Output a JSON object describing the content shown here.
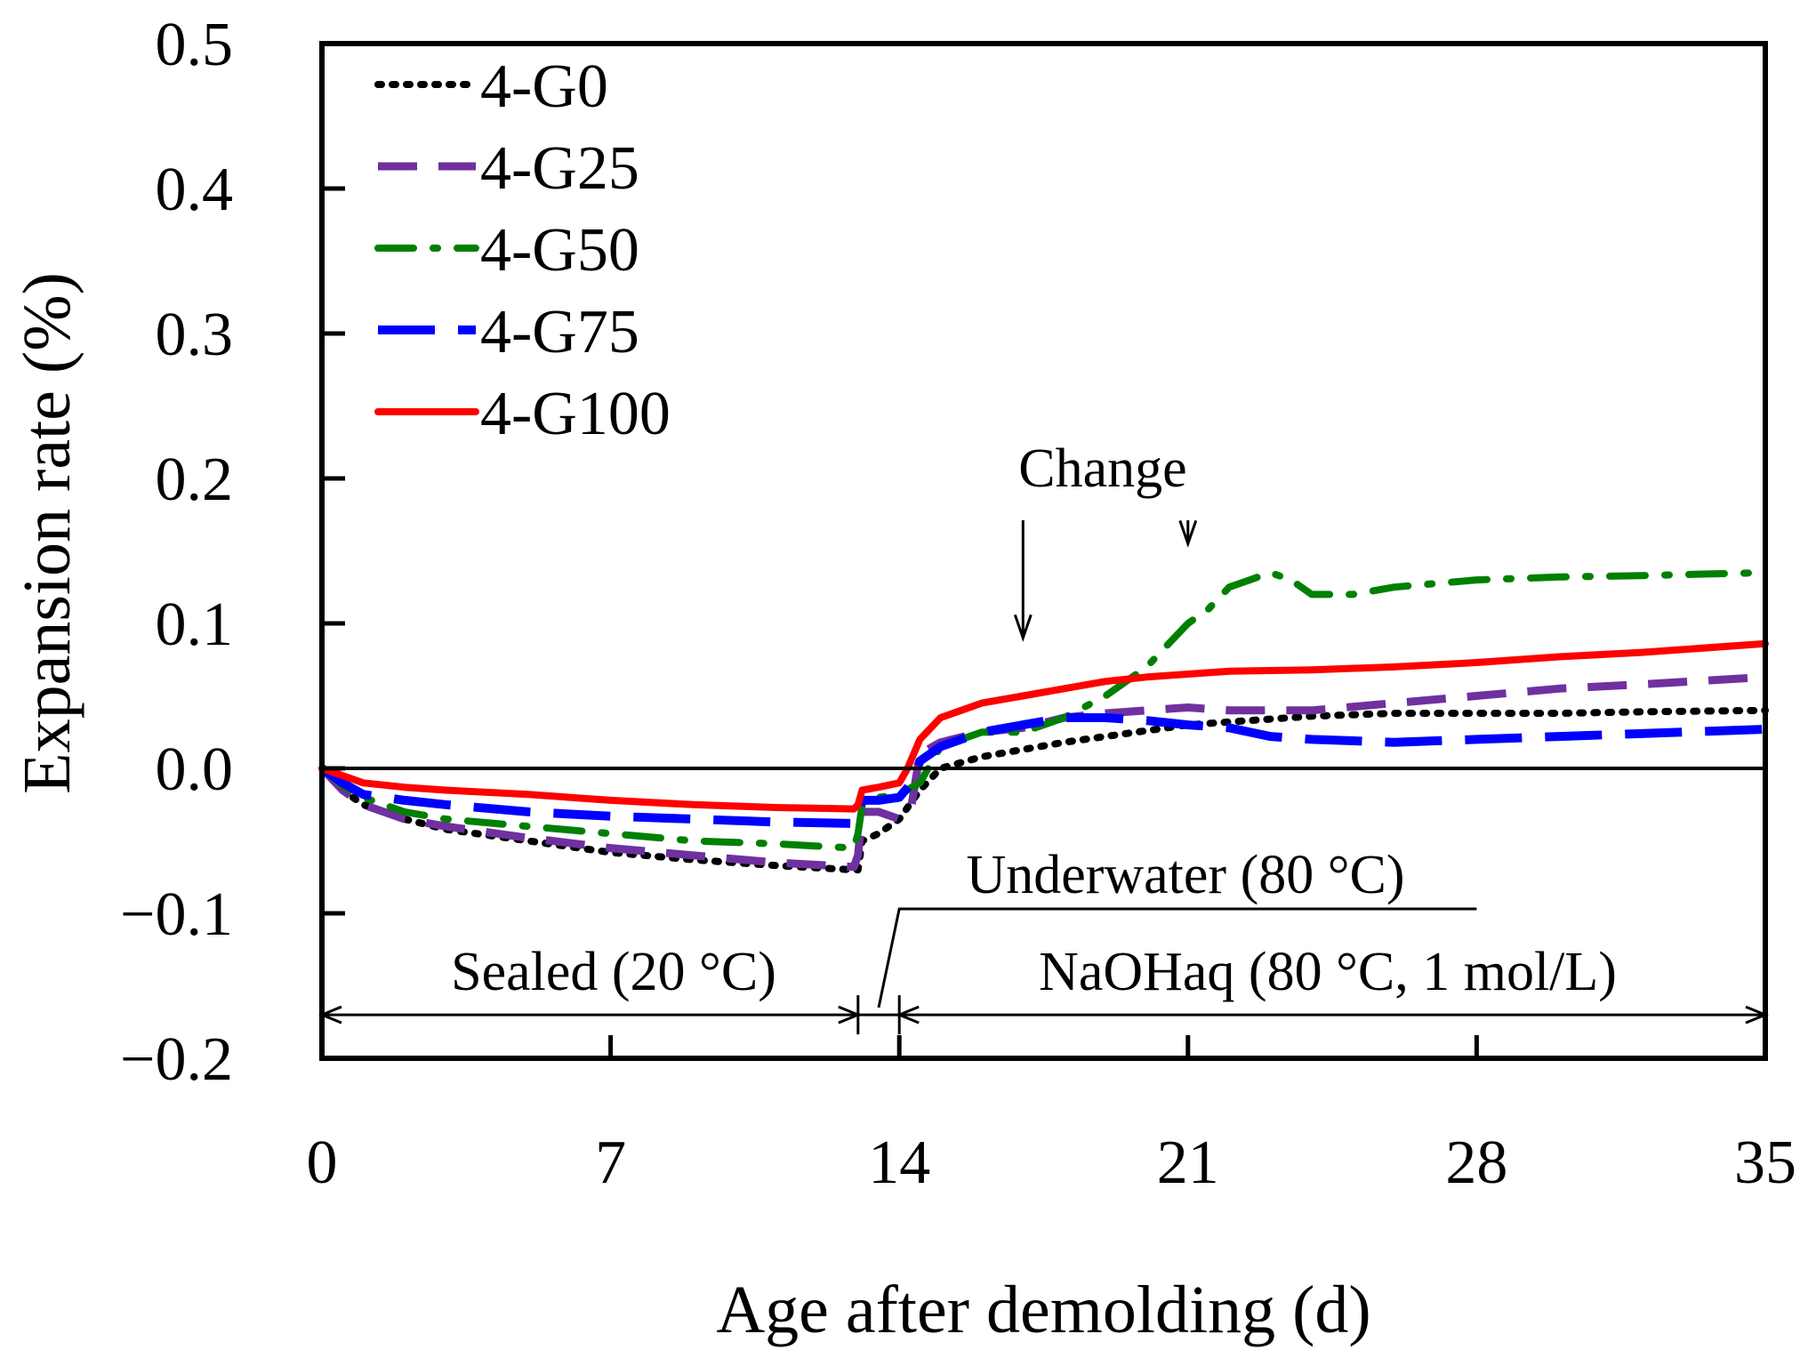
{
  "chart_data": {
    "type": "line",
    "title": "",
    "xlabel": "Age after demolding (d)",
    "ylabel": "Expansion rate (%)",
    "xlim": [
      0,
      35
    ],
    "ylim": [
      -0.2,
      0.5
    ],
    "xticks": [
      0,
      7,
      14,
      21,
      28,
      35
    ],
    "xtick_labels": [
      "0",
      "7",
      "14",
      "21",
      "28",
      "35"
    ],
    "yticks": [
      -0.2,
      -0.1,
      0.0,
      0.1,
      0.2,
      0.3,
      0.4,
      0.5
    ],
    "ytick_labels": [
      "−0.2",
      "−0.1",
      "0.0",
      "0.1",
      "0.2",
      "0.3",
      "0.4",
      "0.5"
    ],
    "grid": false,
    "legend_position": "top-left",
    "series": [
      {
        "name": "4-G0",
        "color": "#000000",
        "style": "dotted",
        "x": [
          0,
          0.5,
          1,
          2,
          3,
          5,
          7,
          9,
          11,
          12.9,
          13.0,
          13.1,
          13.5,
          14.0,
          14.5,
          15,
          16,
          17,
          18,
          19,
          20,
          21,
          22,
          24,
          26,
          28,
          30,
          32,
          35
        ],
        "y": [
          0,
          -0.015,
          -0.025,
          -0.035,
          -0.042,
          -0.05,
          -0.058,
          -0.063,
          -0.067,
          -0.07,
          -0.07,
          -0.05,
          -0.045,
          -0.035,
          -0.015,
          0.0,
          0.008,
          0.013,
          0.018,
          0.022,
          0.026,
          0.03,
          0.032,
          0.036,
          0.038,
          0.038,
          0.038,
          0.039,
          0.04
        ]
      },
      {
        "name": "4-G25",
        "color": "#7030a0",
        "style": "dashed",
        "x": [
          0,
          0.5,
          1,
          2,
          3,
          5,
          7,
          9,
          11,
          12.9,
          13.0,
          13.1,
          13.5,
          14.0,
          14.3,
          14.5,
          15,
          16,
          17,
          18,
          19,
          20,
          21,
          22,
          24,
          26,
          28,
          30,
          32,
          35
        ],
        "y": [
          0,
          -0.015,
          -0.025,
          -0.035,
          -0.04,
          -0.048,
          -0.055,
          -0.06,
          -0.065,
          -0.068,
          -0.06,
          -0.03,
          -0.03,
          -0.035,
          -0.025,
          0.01,
          0.018,
          0.025,
          0.028,
          0.035,
          0.038,
          0.04,
          0.042,
          0.04,
          0.04,
          0.045,
          0.05,
          0.055,
          0.058,
          0.063
        ]
      },
      {
        "name": "4-G50",
        "color": "#008000",
        "style": "dashdot",
        "x": [
          0,
          0.5,
          1,
          2,
          3,
          5,
          7,
          9,
          11,
          12.9,
          13.0,
          13.1,
          13.5,
          14.0,
          14.5,
          15,
          16,
          17,
          18,
          19,
          20,
          20.5,
          21,
          21.5,
          22,
          22.5,
          23,
          23.5,
          24,
          25,
          26,
          28,
          30,
          32,
          35
        ],
        "y": [
          0,
          -0.012,
          -0.02,
          -0.03,
          -0.035,
          -0.04,
          -0.045,
          -0.05,
          -0.052,
          -0.055,
          -0.045,
          -0.025,
          -0.02,
          -0.018,
          -0.01,
          0.015,
          0.025,
          0.025,
          0.035,
          0.05,
          0.07,
          0.085,
          0.1,
          0.11,
          0.125,
          0.13,
          0.135,
          0.13,
          0.12,
          0.12,
          0.125,
          0.13,
          0.132,
          0.133,
          0.135
        ]
      },
      {
        "name": "4-G75",
        "color": "#0000ff",
        "style": "longdash",
        "x": [
          0,
          0.5,
          1,
          2,
          3,
          5,
          7,
          9,
          11,
          12.9,
          13.0,
          13.1,
          13.5,
          14.0,
          14.3,
          14.5,
          15,
          16,
          17,
          18,
          19,
          20,
          21,
          22,
          23,
          24,
          26,
          28,
          30,
          32,
          35
        ],
        "y": [
          0,
          -0.01,
          -0.018,
          -0.022,
          -0.025,
          -0.03,
          -0.033,
          -0.035,
          -0.037,
          -0.038,
          -0.035,
          -0.022,
          -0.022,
          -0.02,
          -0.01,
          0.005,
          0.015,
          0.025,
          0.03,
          0.035,
          0.035,
          0.033,
          0.03,
          0.028,
          0.022,
          0.02,
          0.018,
          0.02,
          0.022,
          0.024,
          0.027
        ]
      },
      {
        "name": "4-G100",
        "color": "#ff0000",
        "style": "solid",
        "x": [
          0,
          0.5,
          1,
          2,
          3,
          5,
          7,
          9,
          11,
          12.9,
          13.0,
          13.1,
          13.5,
          14.0,
          14.2,
          14.5,
          15,
          15.5,
          16,
          17,
          18,
          19,
          20,
          21,
          22,
          24,
          26,
          28,
          30,
          32,
          35
        ],
        "y": [
          0,
          -0.005,
          -0.01,
          -0.013,
          -0.015,
          -0.018,
          -0.022,
          -0.025,
          -0.027,
          -0.028,
          -0.025,
          -0.015,
          -0.013,
          -0.01,
          0.0,
          0.02,
          0.035,
          0.04,
          0.045,
          0.05,
          0.055,
          0.06,
          0.063,
          0.065,
          0.067,
          0.068,
          0.07,
          0.073,
          0.077,
          0.08,
          0.086
        ]
      }
    ],
    "annotations": {
      "change": {
        "text": "Change",
        "arrow_x": [
          17,
          21
        ],
        "arrow_y": [
          0.09,
          0.155
        ]
      },
      "underwater": {
        "text": "Underwater (80 °C)",
        "leader_x": [
          14,
          28
        ],
        "leader_y": [
          -0.1,
          -0.1
        ]
      },
      "sealed": {
        "text": "Sealed (20 °C)",
        "span": [
          0,
          13
        ]
      },
      "naoh": {
        "text": "NaOHaq (80 °C, 1 mol/L)",
        "span": [
          14,
          35
        ]
      },
      "stage_arrow_y": -0.17
    }
  }
}
